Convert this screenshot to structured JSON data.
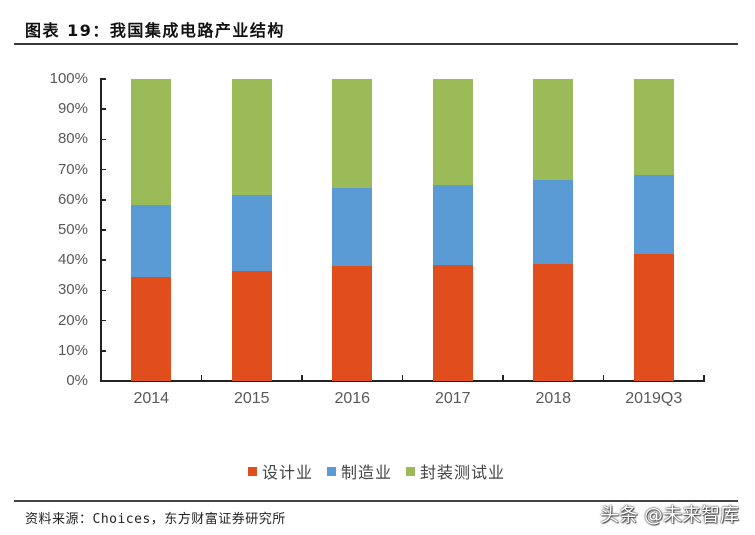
{
  "header": {
    "title": "图表 19：我国集成电路产业结构"
  },
  "footer": {
    "source": "资料来源：Choices，东方财富证券研究所",
    "watermark": "头条 @未来智库"
  },
  "colors": {
    "design": "#E04E1E",
    "manufacturing": "#5B9BD5",
    "packaging_testing": "#9BBB59",
    "axis": "#222222",
    "tick_label": "#595959"
  },
  "axis": {
    "y_ticks": [
      "0%",
      "10%",
      "20%",
      "30%",
      "40%",
      "50%",
      "60%",
      "70%",
      "80%",
      "90%",
      "100%"
    ],
    "x_ticks": [
      "2014",
      "2015",
      "2016",
      "2017",
      "2018",
      "2019Q3"
    ]
  },
  "legend": [
    {
      "label": "设计业",
      "color": "#E04E1E"
    },
    {
      "label": "制造业",
      "color": "#5B9BD5"
    },
    {
      "label": "封装测试业",
      "color": "#9BBB59"
    }
  ],
  "chart_data": {
    "type": "bar",
    "stacked": true,
    "percent_stacked": true,
    "title": "图表 19：我国集成电路产业结构",
    "xlabel": "",
    "ylabel": "",
    "ylim": [
      0,
      100
    ],
    "yticks": [
      "0%",
      "10%",
      "20%",
      "30%",
      "40%",
      "50%",
      "60%",
      "70%",
      "80%",
      "90%",
      "100%"
    ],
    "categories": [
      "2014",
      "2015",
      "2016",
      "2017",
      "2018",
      "2019Q3"
    ],
    "series": [
      {
        "name": "设计业",
        "color": "#E04E1E",
        "values": [
          34.5,
          36.5,
          38.0,
          38.5,
          38.7,
          42.0
        ]
      },
      {
        "name": "制造业",
        "color": "#5B9BD5",
        "values": [
          23.8,
          25.1,
          25.9,
          26.5,
          27.9,
          26.2
        ]
      },
      {
        "name": "封装测试业",
        "color": "#9BBB59",
        "values": [
          41.7,
          38.4,
          36.1,
          35.0,
          33.4,
          31.8
        ]
      }
    ],
    "legend_position": "bottom",
    "grid": false,
    "source": "资料来源：Choices，东方财富证券研究所"
  }
}
